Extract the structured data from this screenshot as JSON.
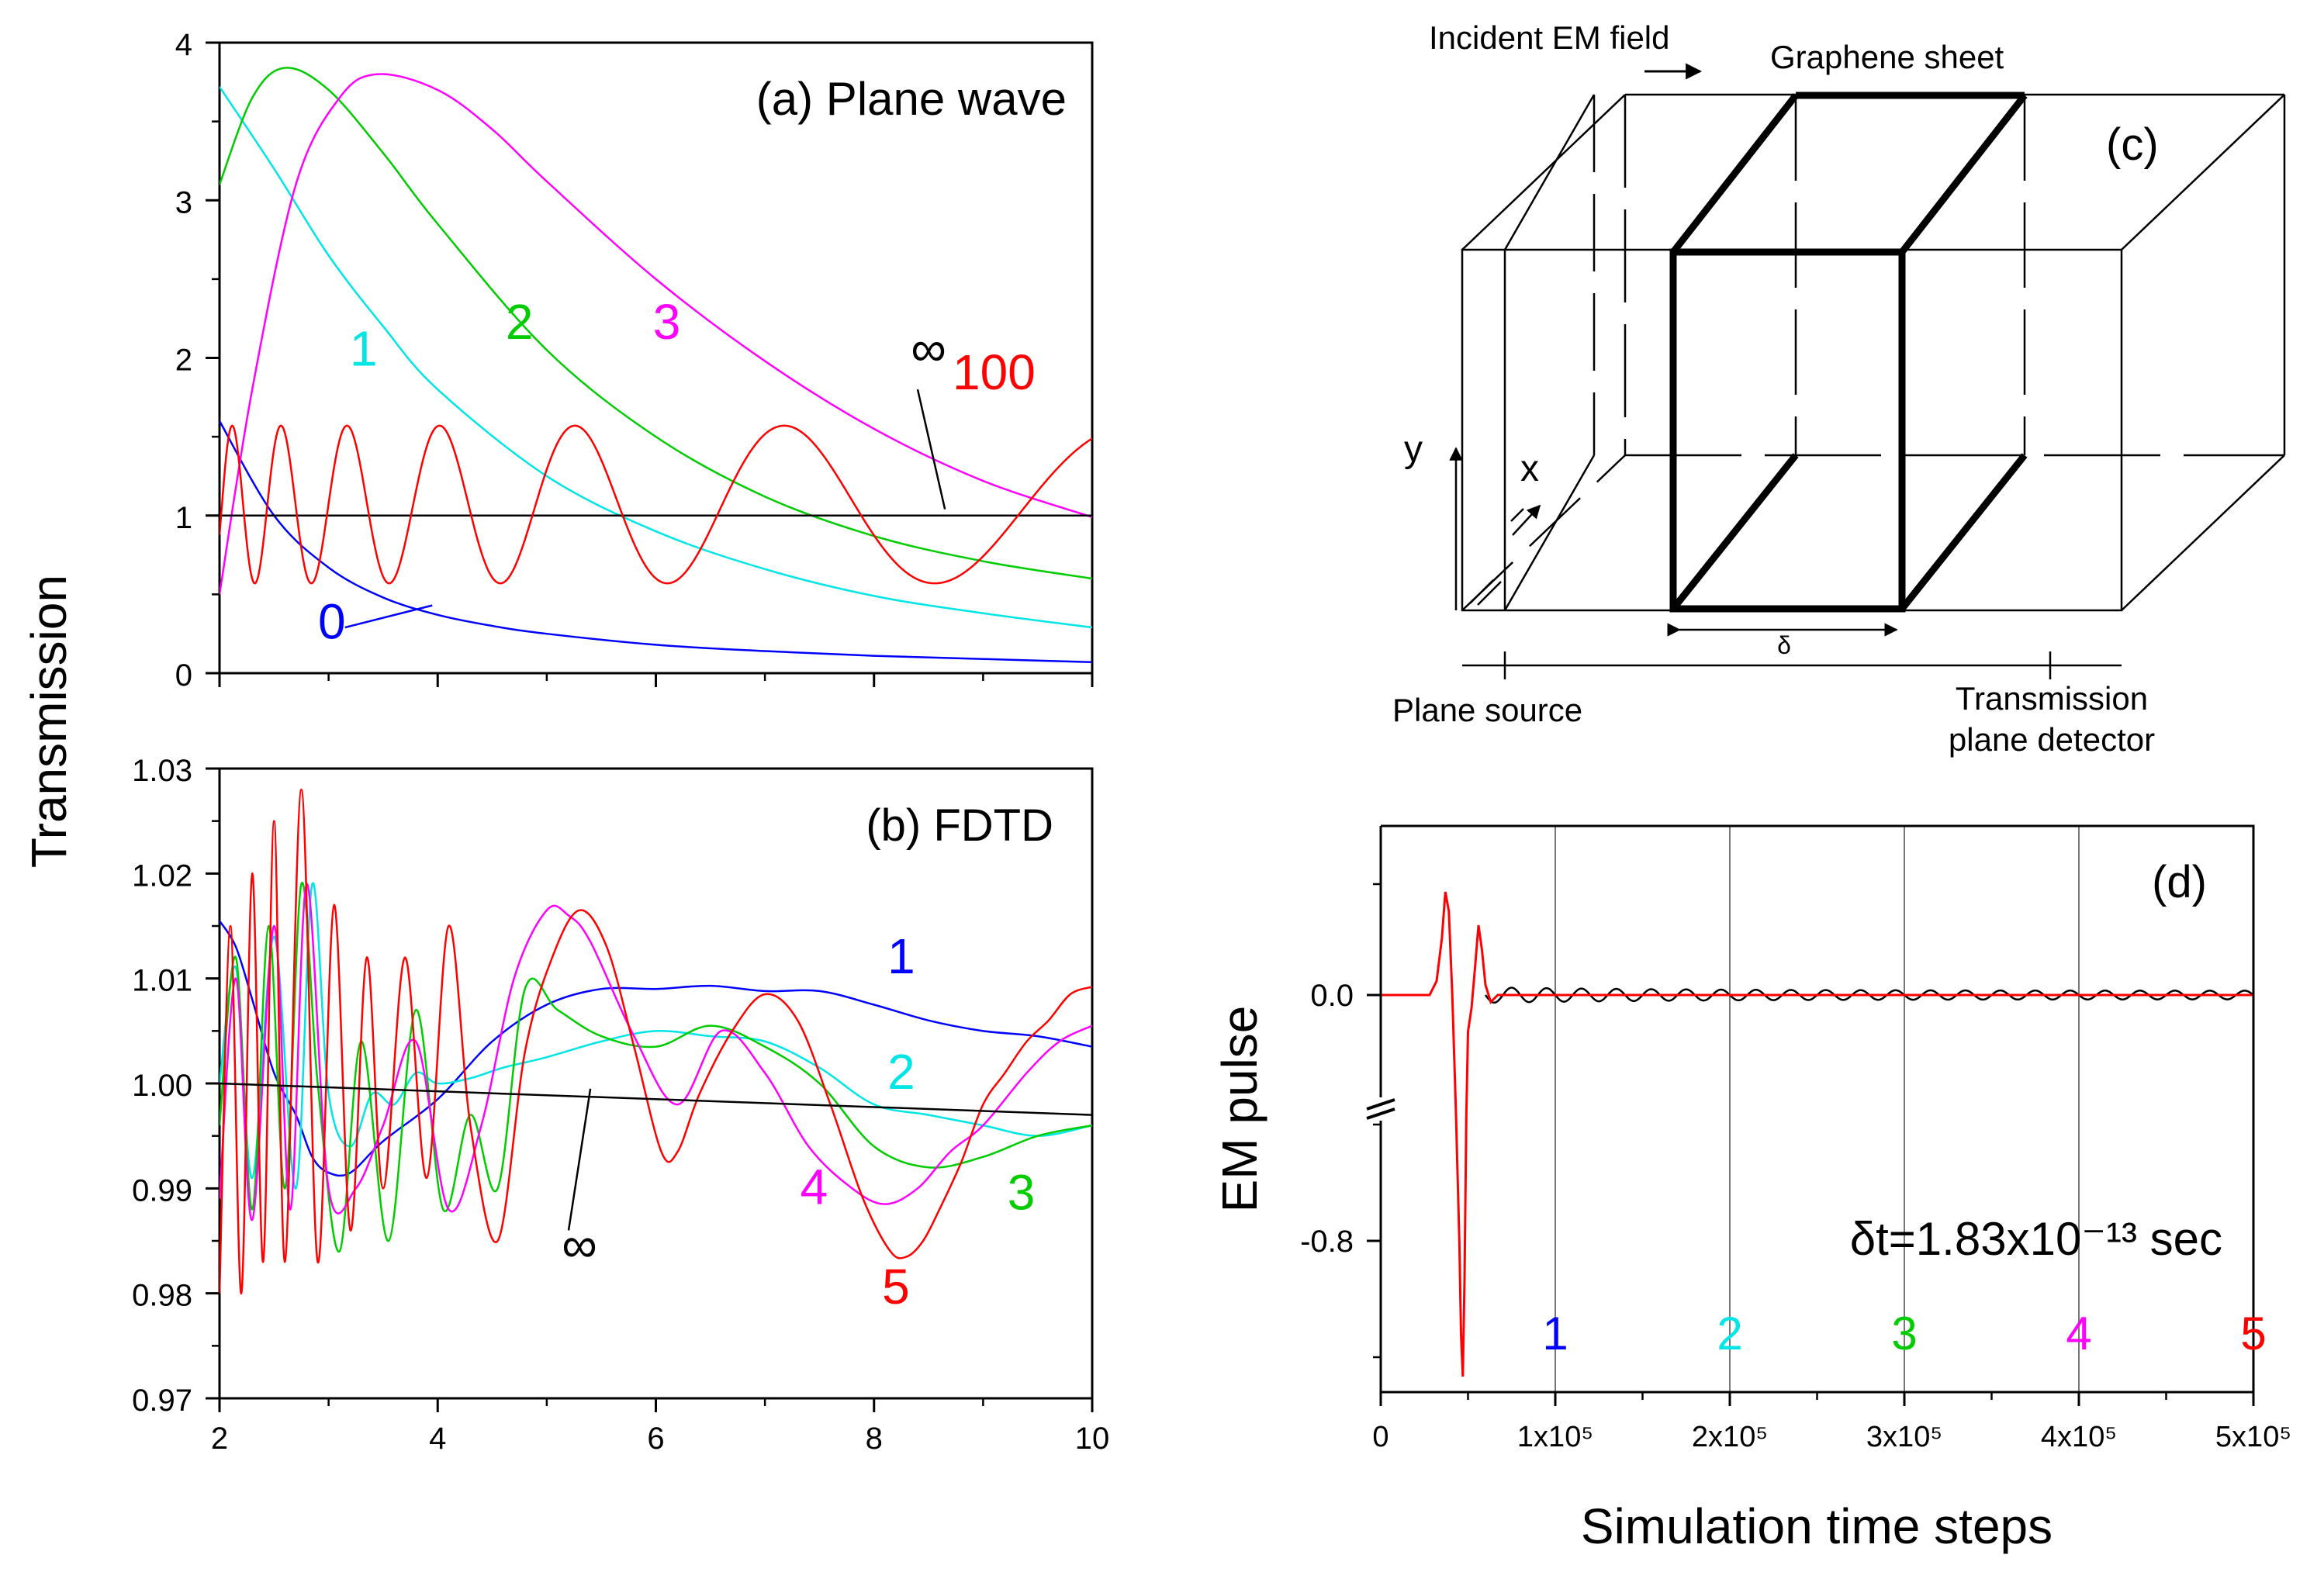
{
  "colors": {
    "red": "#ff0000",
    "blue": "#0000ff",
    "cyan": "#00e5e5",
    "green": "#00cc00",
    "magenta": "#ff00ff",
    "black": "#000000"
  },
  "shared_ylabel": "Transmission",
  "chart_data": [
    {
      "id": "a",
      "type": "line",
      "title": "(a) Plane wave",
      "xlim": [
        2,
        10
      ],
      "ylim": [
        0,
        4
      ],
      "xticks": [
        2,
        4,
        6,
        8,
        10
      ],
      "yticks": [
        0,
        1,
        2,
        3,
        4
      ],
      "ytick_labels": [
        "0",
        "1",
        "2",
        "3",
        "4"
      ],
      "series": [
        {
          "name": "0",
          "color": "blue",
          "x": [
            2,
            2.5,
            3,
            3.5,
            4,
            4.5,
            5,
            6,
            7,
            8,
            9,
            10
          ],
          "y": [
            1.6,
            1.0,
            0.67,
            0.48,
            0.37,
            0.3,
            0.25,
            0.18,
            0.14,
            0.11,
            0.09,
            0.07
          ]
        },
        {
          "name": "1",
          "color": "cyan",
          "x": [
            2,
            2.5,
            3,
            3.5,
            4,
            5,
            6,
            7,
            8,
            9,
            10
          ],
          "y": [
            3.72,
            3.2,
            2.65,
            2.2,
            1.8,
            1.25,
            0.9,
            0.66,
            0.49,
            0.38,
            0.29
          ]
        },
        {
          "name": "2",
          "color": "green",
          "x": [
            2,
            2.3,
            2.6,
            3,
            3.5,
            4,
            5,
            6,
            7,
            8,
            9,
            10
          ],
          "y": [
            3.1,
            3.65,
            3.84,
            3.7,
            3.3,
            2.85,
            2.05,
            1.5,
            1.12,
            0.87,
            0.71,
            0.6
          ]
        },
        {
          "name": "3",
          "color": "magenta",
          "x": [
            2,
            2.3,
            2.7,
            3.1,
            3.45,
            4,
            4.5,
            5,
            6,
            7,
            8,
            9,
            10
          ],
          "y": [
            0.5,
            1.8,
            3.1,
            3.65,
            3.8,
            3.7,
            3.45,
            3.12,
            2.5,
            1.98,
            1.55,
            1.22,
            0.99
          ]
        },
        {
          "name": "∞",
          "color": "black",
          "x": [
            2,
            10
          ],
          "y": [
            1.0,
            1.0
          ]
        },
        {
          "name": "100",
          "color": "red",
          "model": "oscillation",
          "x_range": [
            2,
            10
          ],
          "center": 1.07,
          "amplitude": 0.5,
          "phase_coefficient": 50,
          "phase_exponent": -1.5
        }
      ],
      "labels": [
        {
          "text": "0",
          "color": "blue",
          "x": 3.03,
          "y": 0.22
        },
        {
          "text": "1",
          "color": "cyan",
          "x": 3.32,
          "y": 1.95
        },
        {
          "text": "2",
          "color": "green",
          "x": 4.75,
          "y": 2.12
        },
        {
          "text": "3",
          "color": "magenta",
          "x": 6.1,
          "y": 2.12
        },
        {
          "text": "∞",
          "color": "black",
          "x": 8.5,
          "y": 1.95
        },
        {
          "text": "100",
          "color": "red",
          "x": 9.1,
          "y": 1.8
        }
      ],
      "pointers": [
        {
          "color": "blue",
          "from": [
            3.15,
            0.29
          ],
          "to": [
            3.95,
            0.43
          ]
        },
        {
          "color": "black",
          "from": [
            8.4,
            1.8
          ],
          "to": [
            8.65,
            1.04
          ]
        }
      ]
    },
    {
      "id": "b",
      "type": "line",
      "title": "(b) FDTD",
      "xlim": [
        2,
        10
      ],
      "ylim": [
        0.97,
        1.03
      ],
      "xticks": [
        2,
        4,
        6,
        8,
        10
      ],
      "xtick_labels": [
        "2",
        "4",
        "6",
        "8",
        "10"
      ],
      "yticks": [
        0.97,
        0.98,
        0.99,
        1.0,
        1.01,
        1.02,
        1.03
      ],
      "ytick_labels": [
        "0.97",
        "0.98",
        "0.99",
        "1.00",
        "1.01",
        "1.02",
        "1.03"
      ],
      "series": [
        {
          "name": "1",
          "color": "blue",
          "x": [
            2,
            2.15,
            2.3,
            2.5,
            2.7,
            2.85,
            3.0,
            3.2,
            3.5,
            4.0,
            4.5,
            5.0,
            5.5,
            6.0,
            6.5,
            7.0,
            7.5,
            8.0,
            8.5,
            9.0,
            9.5,
            10.0
          ],
          "y": [
            1.0155,
            1.013,
            1.008,
            1.001,
            0.997,
            0.993,
            0.9915,
            0.9915,
            0.9945,
            0.9985,
            1.004,
            1.0075,
            1.009,
            1.009,
            1.0093,
            1.0088,
            1.0088,
            1.0075,
            1.006,
            1.005,
            1.0045,
            1.0035
          ]
        },
        {
          "name": "2",
          "color": "cyan",
          "x": [
            2.0,
            2.15,
            2.3,
            2.5,
            2.7,
            2.85,
            3.0,
            3.2,
            3.4,
            3.6,
            3.8,
            4.0,
            4.3,
            4.6,
            5.0,
            5.5,
            6.0,
            6.5,
            7.0,
            7.5,
            8.0,
            8.5,
            9.0,
            9.5,
            10.0
          ],
          "y": [
            1.0,
            1.011,
            0.991,
            1.014,
            0.99,
            1.019,
            0.999,
            0.994,
            0.999,
            0.998,
            1.001,
            1.0,
            1.0005,
            1.0015,
            1.0025,
            1.004,
            1.005,
            1.0045,
            1.004,
            1.0015,
            0.998,
            0.997,
            0.996,
            0.995,
            0.996
          ]
        },
        {
          "name": "3",
          "color": "green",
          "x": [
            2.0,
            2.15,
            2.3,
            2.45,
            2.6,
            2.75,
            2.9,
            3.1,
            3.3,
            3.55,
            3.8,
            4.05,
            4.3,
            4.55,
            4.8,
            5.1,
            5.5,
            6.0,
            6.5,
            7.0,
            7.5,
            8.0,
            8.5,
            9.0,
            9.5,
            10.0
          ],
          "y": [
            0.996,
            1.012,
            0.988,
            1.015,
            0.99,
            1.019,
            1.0,
            0.984,
            1.004,
            0.985,
            1.007,
            0.988,
            0.997,
            0.99,
            1.009,
            1.007,
            1.0045,
            1.0035,
            1.0055,
            1.0035,
            1.0,
            0.994,
            0.992,
            0.993,
            0.995,
            0.996
          ]
        },
        {
          "name": "4",
          "color": "magenta",
          "x": [
            2.0,
            2.15,
            2.3,
            2.5,
            2.65,
            2.8,
            3.0,
            3.25,
            3.5,
            3.8,
            4.1,
            4.4,
            4.7,
            5.0,
            5.2,
            5.4,
            5.8,
            6.2,
            6.6,
            7.0,
            7.4,
            7.8,
            8.1,
            8.4,
            8.7,
            9.0,
            9.4,
            9.7,
            10.0
          ],
          "y": [
            0.989,
            1.01,
            0.987,
            1.015,
            0.988,
            1.019,
            0.99,
            0.99,
            0.996,
            1.004,
            0.988,
            0.996,
            1.01,
            1.0165,
            1.016,
            1.0135,
            1.0045,
            0.998,
            1.005,
            1.001,
            0.994,
            0.99,
            0.9885,
            0.99,
            0.9935,
            0.996,
            1.001,
            1.004,
            1.0055
          ]
        },
        {
          "name": "5",
          "color": "red",
          "x": [
            2.0,
            2.1,
            2.2,
            2.3,
            2.4,
            2.5,
            2.6,
            2.75,
            2.9,
            3.05,
            3.2,
            3.35,
            3.5,
            3.7,
            3.9,
            4.1,
            4.3,
            4.55,
            4.8,
            5.05,
            5.3,
            5.55,
            5.8,
            6.05,
            6.2,
            6.4,
            6.7,
            7.0,
            7.3,
            7.6,
            7.9,
            8.15,
            8.3,
            8.45,
            8.6,
            8.8,
            9.0,
            9.2,
            9.4,
            9.6,
            9.8,
            10.0
          ],
          "y": [
            0.98,
            1.015,
            0.98,
            1.02,
            0.983,
            1.025,
            0.983,
            1.028,
            0.983,
            1.017,
            0.986,
            1.012,
            0.99,
            1.012,
            0.991,
            1.015,
            0.996,
            0.985,
            1.003,
            1.012,
            1.0165,
            1.013,
            1.0035,
            0.9935,
            0.9935,
            0.999,
            1.005,
            1.0085,
            1.006,
            0.998,
            0.989,
            0.984,
            0.9835,
            0.985,
            0.988,
            0.9925,
            0.998,
            1.001,
            1.004,
            1.006,
            1.0085,
            1.0092
          ]
        },
        {
          "name": "∞",
          "color": "black",
          "x": [
            2,
            10
          ],
          "y": [
            1.0,
            0.997
          ]
        }
      ],
      "labels": [
        {
          "text": "1",
          "color": "blue",
          "x": 8.25,
          "y": 1.0105
        },
        {
          "text": "2",
          "color": "cyan",
          "x": 8.25,
          "y": 0.9995
        },
        {
          "text": "3",
          "color": "green",
          "x": 9.35,
          "y": 0.988
        },
        {
          "text": "4",
          "color": "magenta",
          "x": 7.45,
          "y": 0.9885
        },
        {
          "text": "5",
          "color": "red",
          "x": 8.2,
          "y": 0.979
        },
        {
          "text": "∞",
          "color": "black",
          "x": 5.3,
          "y": 0.983
        }
      ],
      "pointers": [
        {
          "color": "black",
          "from": [
            5.2,
            0.986
          ],
          "to": [
            5.4,
            0.9995
          ]
        }
      ]
    },
    {
      "id": "d",
      "type": "line",
      "title": "(d)",
      "xlabel": "Simulation time steps",
      "ylabel": "EM pulse",
      "annotation": "δt=1.83x10⁻¹³ sec",
      "xlim": [
        0,
        500000
      ],
      "xticks": [
        0,
        100000,
        200000,
        300000,
        400000,
        500000
      ],
      "xtick_labels": [
        "0",
        "1x10⁵",
        "2x10⁵",
        "3x10⁵",
        "4x10⁵",
        "5x10⁵"
      ],
      "ytick_labels": [
        "0.0",
        "-0.8"
      ],
      "y_axis_break": true,
      "grid_lines_x": [
        100000,
        200000,
        300000,
        400000,
        500000
      ],
      "markers": [
        {
          "text": "1",
          "color": "blue",
          "x": 100000
        },
        {
          "text": "2",
          "color": "cyan",
          "x": 200000
        },
        {
          "text": "3",
          "color": "green",
          "x": 300000
        },
        {
          "text": "4",
          "color": "magenta",
          "x": 400000
        },
        {
          "text": "5",
          "color": "red",
          "x": 500000
        }
      ],
      "series": [
        {
          "name": "EM pulse",
          "color": "red",
          "description": "single broadband pulse near 40000-60000 steps, then flat at 0"
        },
        {
          "name": "ringing",
          "color": "black",
          "description": "small decaying oscillation around 0 after the pulse"
        }
      ]
    }
  ],
  "schematic": {
    "id": "c",
    "title": "(c)",
    "labels": {
      "incident": "Incident EM field",
      "graphene": "Graphene sheet",
      "y_axis": "y",
      "x_axis": "x",
      "delta": "δ",
      "source": "Plane source",
      "detector_line1": "Transmission",
      "detector_line2": "plane detector"
    }
  }
}
